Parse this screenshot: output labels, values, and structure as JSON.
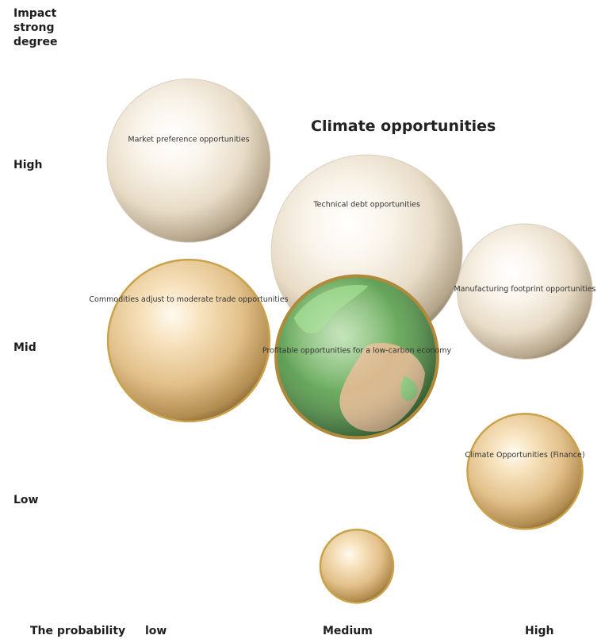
{
  "chart_data": {
    "type": "bubble",
    "title": "Climate opportunities",
    "y_axis": {
      "title_lines": [
        "Impact",
        "strong",
        "degree"
      ],
      "levels": [
        "High",
        "Mid",
        "Low"
      ]
    },
    "x_axis": {
      "title": "The probability",
      "levels": [
        "low",
        "Medium",
        "High"
      ]
    },
    "bubbles": [
      {
        "label": "Market preference opportunities",
        "x_level": "low",
        "y_level": "High",
        "x": 1,
        "y": 3.1,
        "size": 105,
        "style": "pearl"
      },
      {
        "label": "Technical debt opportunities",
        "x_level": "Medium",
        "y_level": "High",
        "x": 2.06,
        "y": 2.55,
        "size": 123,
        "style": "pearl"
      },
      {
        "label": "Manufacturing footprint opportunities",
        "x_level": "High",
        "y_level": "Mid",
        "x": 3.0,
        "y": 2.3,
        "size": 87,
        "style": "pearl"
      },
      {
        "label": "Commodities adjust to moderate trade opportunities",
        "x_level": "low",
        "y_level": "Mid",
        "x": 1,
        "y": 2.0,
        "size": 104,
        "style": "gold"
      },
      {
        "label": "Profitable opportunities for a low-carbon economy",
        "x_level": "Medium",
        "y_level": "Mid",
        "x": 2.0,
        "y": 1.9,
        "size": 104,
        "style": "globe"
      },
      {
        "label": "Climate Opportunities (Finance)",
        "x_level": "High",
        "y_level": "Low",
        "x": 3.0,
        "y": 1.2,
        "size": 74,
        "style": "gold"
      },
      {
        "label": "",
        "x_level": "Medium",
        "y_level": "Low",
        "x": 2.0,
        "y": 0.62,
        "size": 47,
        "style": "gold"
      }
    ]
  }
}
